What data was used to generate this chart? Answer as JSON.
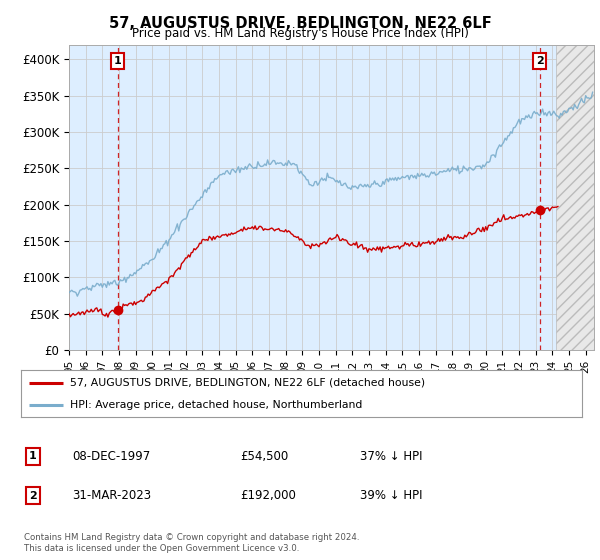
{
  "title": "57, AUGUSTUS DRIVE, BEDLINGTON, NE22 6LF",
  "subtitle": "Price paid vs. HM Land Registry's House Price Index (HPI)",
  "ylim": [
    0,
    420000
  ],
  "yticks": [
    0,
    50000,
    100000,
    150000,
    200000,
    250000,
    300000,
    350000,
    400000
  ],
  "ytick_labels": [
    "£0",
    "£50K",
    "£100K",
    "£150K",
    "£200K",
    "£250K",
    "£300K",
    "£350K",
    "£400K"
  ],
  "sale1_date": 1997.92,
  "sale1_price": 54500,
  "sale1_label": "1",
  "sale2_date": 2023.25,
  "sale2_price": 192000,
  "sale2_label": "2",
  "line_color_property": "#cc0000",
  "line_color_hpi": "#7aadcc",
  "marker_color": "#cc0000",
  "grid_color": "#cccccc",
  "background_color": "#ffffff",
  "plot_bg_color": "#ddeeff",
  "legend_label_property": "57, AUGUSTUS DRIVE, BEDLINGTON, NE22 6LF (detached house)",
  "legend_label_hpi": "HPI: Average price, detached house, Northumberland",
  "annotation1_date": "08-DEC-1997",
  "annotation1_price": "£54,500",
  "annotation1_hpi": "37% ↓ HPI",
  "annotation2_date": "31-MAR-2023",
  "annotation2_price": "£192,000",
  "annotation2_hpi": "39% ↓ HPI",
  "footnote": "Contains HM Land Registry data © Crown copyright and database right 2024.\nThis data is licensed under the Open Government Licence v3.0.",
  "xmin": 1995.0,
  "xmax": 2026.5,
  "hatch_start": 2024.25
}
